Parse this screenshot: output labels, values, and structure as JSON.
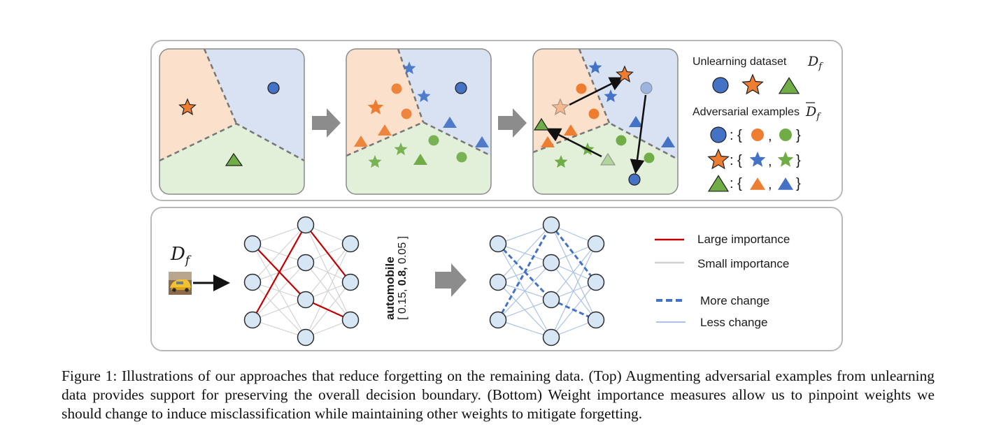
{
  "top_panel": {
    "legend": {
      "unlearning_dataset": "Unlearning dataset",
      "unlearning_symbol_main": "D",
      "unlearning_symbol_sub": "f",
      "adversarial_examples": "Adversarial examples",
      "adversarial_symbol_main": "D",
      "adversarial_symbol_sub": "f",
      "mapping_open": ": {",
      "mapping_comma": ",",
      "mapping_close": "}"
    },
    "colors": {
      "region_orange": "#fbe0cc",
      "region_blue": "#d8e2f3",
      "region_green": "#e2efd9",
      "marker_blue": "#4472c4",
      "marker_orange": "#ed7d31",
      "marker_green": "#70ad47"
    }
  },
  "bottom_panel": {
    "input_symbol_main": "D",
    "input_symbol_sub": "f",
    "input_image": "car-thumbnail",
    "output_vector_open": "[ 0.15,",
    "output_vector_max": "0.8,",
    "output_vector_close": "0.05 ]",
    "output_label": "automobile",
    "legend": {
      "large_importance": "Large importance",
      "small_importance": "Small importance",
      "more_change": "More change",
      "less_change": "Less change"
    },
    "colors": {
      "large_importance": "#c00000",
      "small_importance": "#d0d0d0",
      "more_change": "#4472c4",
      "less_change": "#a9c2e6",
      "node_fill": "#d6e6f5"
    }
  },
  "caption": "Figure 1: Illustrations of our approaches that reduce forgetting on the remaining data. (Top) Augmenting adversarial examples from unlearning data provides support for preserving the overall decision boundary. (Bottom) Weight importance measures allow us to pinpoint weights we should change to induce misclassification while maintaining other weights to mitigate forgetting."
}
